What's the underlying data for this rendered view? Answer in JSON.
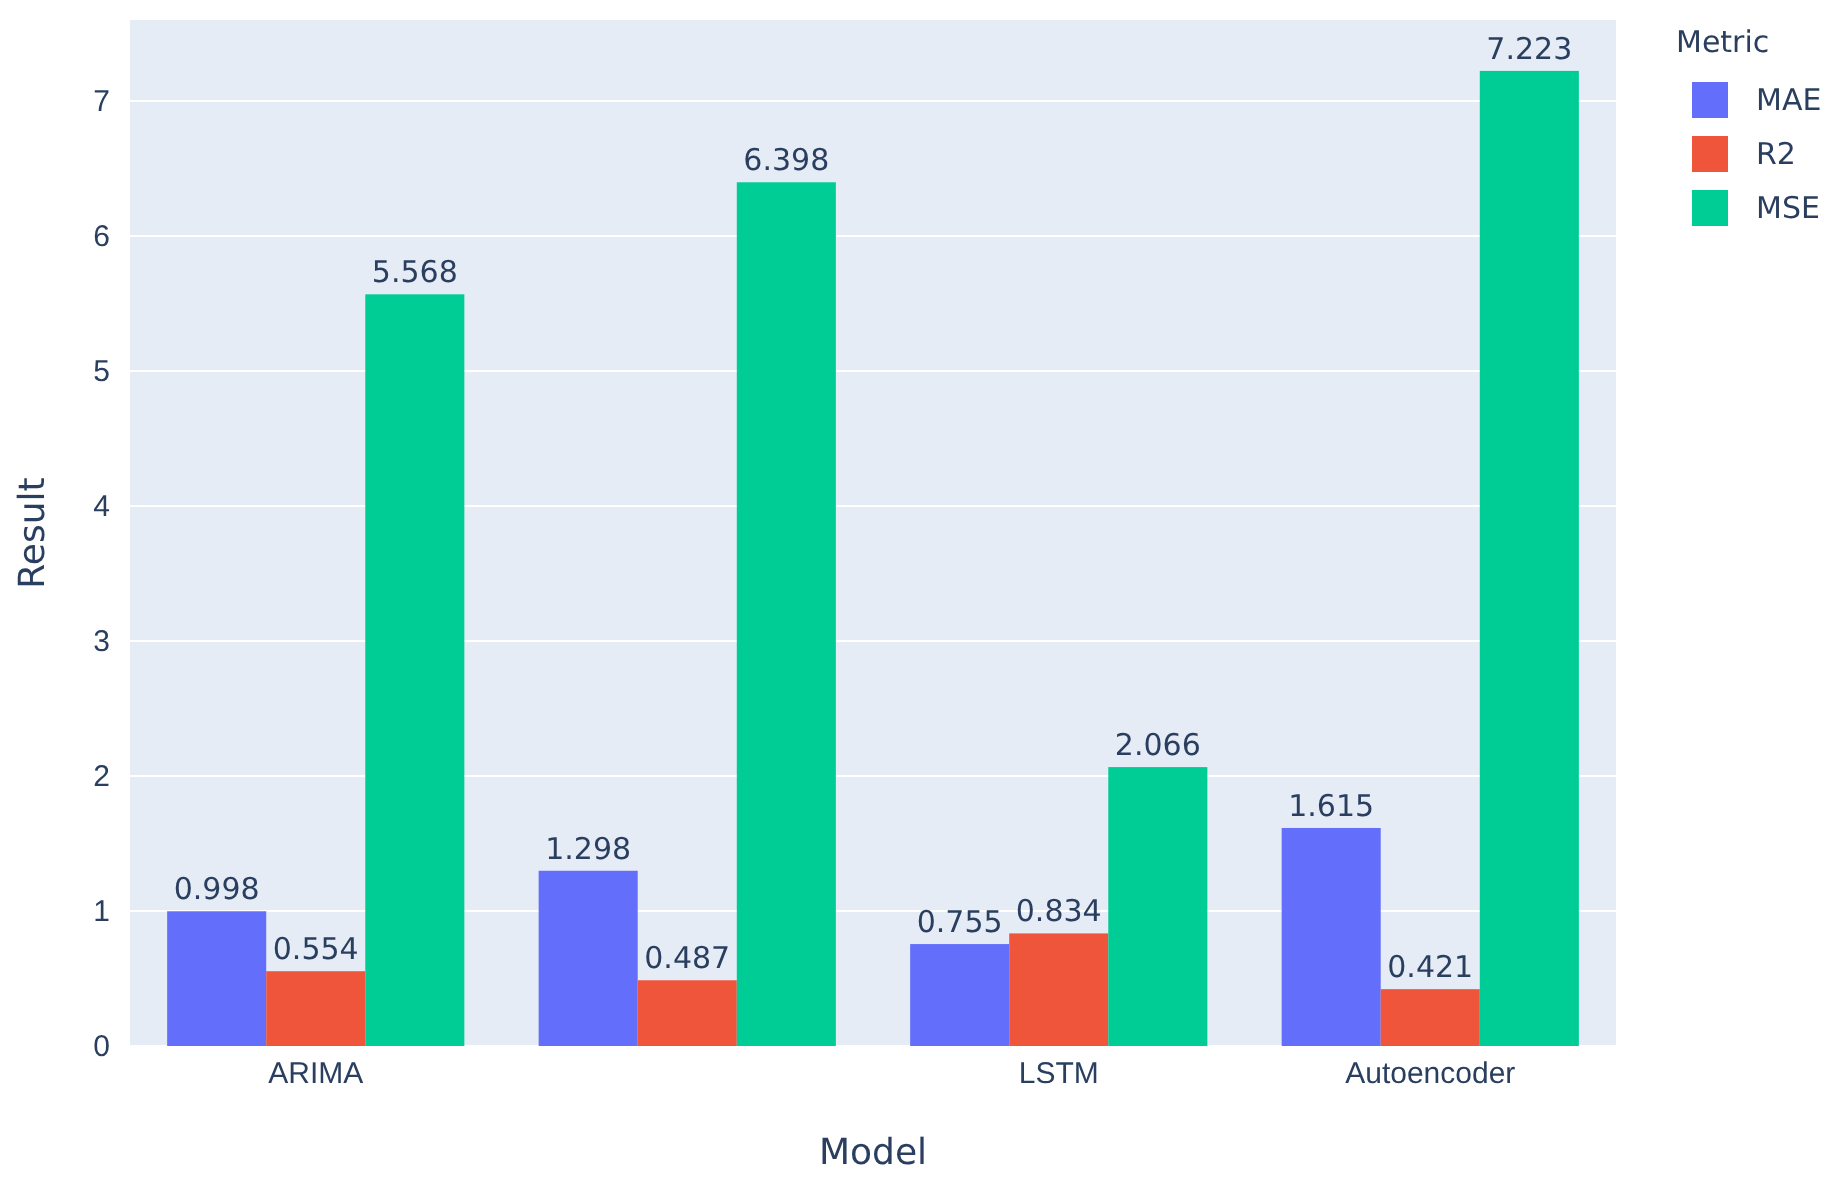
{
  "chart_data": {
    "type": "bar",
    "xlabel": "Model",
    "ylabel": "Result",
    "legend_title": "Metric",
    "categories": [
      "ARIMA",
      null,
      "LSTM",
      "Autoencoder"
    ],
    "series": [
      {
        "name": "MAE",
        "color": "#636efa",
        "values": [
          0.998,
          1.298,
          0.755,
          1.615
        ]
      },
      {
        "name": "R2",
        "color": "#ef553b",
        "values": [
          0.554,
          0.487,
          0.834,
          0.421
        ]
      },
      {
        "name": "MSE",
        "color": "#00cc96",
        "values": [
          5.568,
          6.398,
          2.066,
          7.223
        ]
      }
    ],
    "ylim": [
      0,
      7.6
    ],
    "yticks": [
      0,
      1,
      2,
      3,
      4,
      5,
      6,
      7
    ],
    "grid": "y",
    "legend": "top right",
    "data_labels": true
  }
}
